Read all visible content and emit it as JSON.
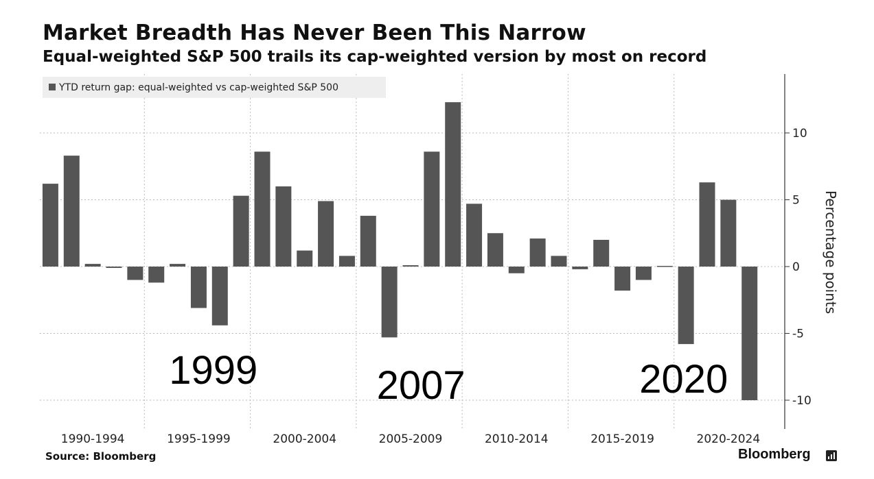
{
  "header": {
    "title": "Market Breadth Has Never Been This Narrow",
    "subtitle": "Equal-weighted S&P 500 trails its cap-weighted version by most on record"
  },
  "footer": {
    "source": "Source: Bloomberg",
    "brand": "Bloomberg",
    "brand_icon": "bloomberg-terminal-icon"
  },
  "colors": {
    "bar": "#555555",
    "grid": "#bbbbbb",
    "legend_bg": "#eeeeee"
  },
  "chart_data": {
    "type": "bar",
    "legend": "YTD return gap: equal-weighted vs cap-weighted S&P 500",
    "legend_position": "top-left",
    "ylabel": "Percentage points",
    "ylim": [
      -12,
      14
    ],
    "yticks": [
      10,
      5,
      0,
      -5,
      -10
    ],
    "ytick_labels": [
      "10",
      "5",
      "0",
      "-5",
      "-10"
    ],
    "xticks": [
      "1990-1994",
      "1995-1999",
      "2000-2004",
      "2005-2009",
      "2010-2014",
      "2015-2019",
      "2020-2024"
    ],
    "grid": true,
    "series": [
      {
        "years": [
          1990,
          1991,
          1992,
          1993,
          1994,
          1995,
          1996,
          1997,
          1998,
          1999,
          2000,
          2001,
          2002,
          2003,
          2004,
          2005,
          2006,
          2007,
          2008,
          2009,
          2010,
          2011,
          2012,
          2013,
          2014,
          2015,
          2016,
          2017,
          2018,
          2019,
          2020,
          2021,
          2022,
          2023,
          2024
        ],
        "values": [
          6.2,
          8.3,
          0.2,
          -0.1,
          -1.0,
          -1.2,
          0.2,
          -3.1,
          -4.4,
          5.3,
          8.6,
          6.0,
          1.2,
          4.9,
          0.8,
          3.8,
          -5.3,
          0.1,
          8.6,
          12.3,
          4.7,
          2.5,
          -0.5,
          2.1,
          0.8,
          -0.2,
          2.0,
          -1.8,
          -1.0,
          0.05,
          -5.8,
          6.3,
          5.0,
          -10.0,
          null
        ]
      }
    ],
    "annotations": [
      {
        "text": "1999",
        "year": 1995.6
      },
      {
        "text": "2007",
        "year": 2005.4
      },
      {
        "text": "2020",
        "year": 2017.8
      }
    ]
  }
}
